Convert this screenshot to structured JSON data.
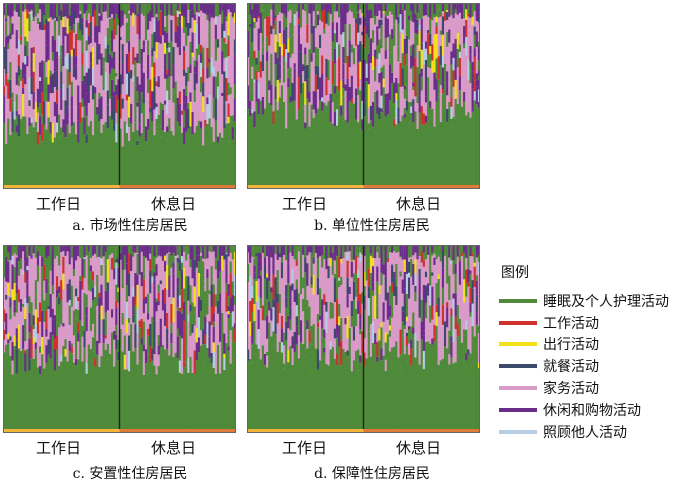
{
  "colors": {
    "sleep": "#4e8a3a",
    "work": "#d0312d",
    "travel": "#f2e11a",
    "dining": "#3b4a6b",
    "housework": "#d99ac8",
    "leisure": "#6a2d8a",
    "care": "#b7cde3",
    "workday_bar": "#f2b53a",
    "restday_bar": "#e07a3a"
  },
  "legend": {
    "title": "图例",
    "items": [
      {
        "key": "sleep",
        "label": "睡眠及个人护理活动"
      },
      {
        "key": "work",
        "label": "工作活动"
      },
      {
        "key": "travel",
        "label": "出行活动"
      },
      {
        "key": "dining",
        "label": "就餐活动"
      },
      {
        "key": "housework",
        "label": "家务活动"
      },
      {
        "key": "leisure",
        "label": "休闲和购物活动"
      },
      {
        "key": "care",
        "label": "照顾他人活动"
      }
    ]
  },
  "chart_data": [
    {
      "type": "area",
      "title": "a. 市场性住房居民",
      "categories": [
        "工作日",
        "休息日"
      ],
      "series_order": [
        "sleep",
        "work",
        "travel",
        "dining",
        "housework",
        "leisure",
        "care"
      ],
      "sleep_share_approx": 0.3,
      "housework_share_approx": 0.35,
      "leisure_share_approx": 0.25
    },
    {
      "type": "area",
      "title": "b. 单位性住房居民",
      "categories": [
        "工作日",
        "休息日"
      ],
      "series_order": [
        "sleep",
        "work",
        "travel",
        "dining",
        "housework",
        "leisure",
        "care"
      ],
      "sleep_share_approx": 0.38,
      "housework_share_approx": 0.28,
      "leisure_share_approx": 0.24
    },
    {
      "type": "area",
      "title": "c. 安置性住房居民",
      "categories": [
        "工作日",
        "休息日"
      ],
      "series_order": [
        "sleep",
        "work",
        "travel",
        "dining",
        "housework",
        "leisure",
        "care"
      ],
      "sleep_share_approx": 0.38,
      "housework_share_approx": 0.32,
      "leisure_share_approx": 0.2
    },
    {
      "type": "area",
      "title": "d. 保障性住房居民",
      "categories": [
        "工作日",
        "休息日"
      ],
      "series_order": [
        "sleep",
        "work",
        "travel",
        "dining",
        "housework",
        "leisure",
        "care"
      ],
      "sleep_share_approx": 0.4,
      "housework_share_approx": 0.35,
      "leisure_share_approx": 0.15
    }
  ]
}
